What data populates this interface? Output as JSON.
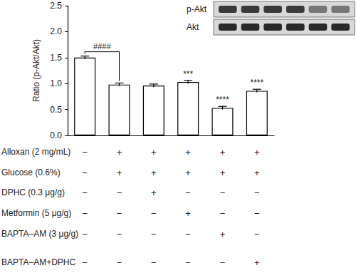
{
  "chart_data": {
    "type": "bar",
    "y_label": "Ratio (p-Akt/Akt)",
    "categories": [
      null,
      null,
      null,
      null,
      null,
      null
    ],
    "values": [
      1.5,
      0.98,
      0.96,
      1.03,
      0.53,
      0.86
    ],
    "errors": [
      0.03,
      0.03,
      0.03,
      0.03,
      0.03,
      0.03
    ],
    "significance": [
      null,
      null,
      null,
      "***",
      "****",
      "****"
    ],
    "comparisons": [
      {
        "from": 0,
        "to": 1,
        "label": "####"
      }
    ],
    "color": "#ffffff",
    "ylim": [
      0,
      2.5
    ],
    "yticks": [
      {
        "value": 0,
        "label": "0.0"
      },
      {
        "value": 0.5,
        "label": "0.5"
      },
      {
        "value": 1,
        "label": "1.0"
      },
      {
        "value": 1.5,
        "label": "1.5"
      },
      {
        "value": 2,
        "label": "2.0"
      },
      {
        "value": 2.5,
        "label": "2.5"
      }
    ],
    "grid": false,
    "blot": {
      "rows": [
        "p-Akt",
        "Akt"
      ]
    },
    "treatments": [
      {
        "name": "Alloxan (2 mg/mL)",
        "signs": [
          "−",
          "+",
          "+",
          "+",
          "+",
          "+"
        ]
      },
      {
        "name": "Glucose (0.6%)",
        "signs": [
          "−",
          "+",
          "+",
          "+",
          "+",
          "+"
        ]
      },
      {
        "name": "DPHC (0.3 μg/g)",
        "signs": [
          "−",
          "−",
          "+",
          "−",
          "−",
          "−"
        ]
      },
      {
        "name": "Metformin (5 μg/g)",
        "signs": [
          "−",
          "−",
          "−",
          "+",
          "−",
          "−"
        ]
      },
      {
        "name": "BAPTA–AM (3 μg/g)",
        "signs": [
          "−",
          "−",
          "−",
          "−",
          "+",
          "−"
        ]
      },
      {
        "name": "BAPTA–AM+DPHC",
        "signs": [
          "−",
          "−",
          "−",
          "−",
          "−",
          "+"
        ]
      }
    ]
  }
}
